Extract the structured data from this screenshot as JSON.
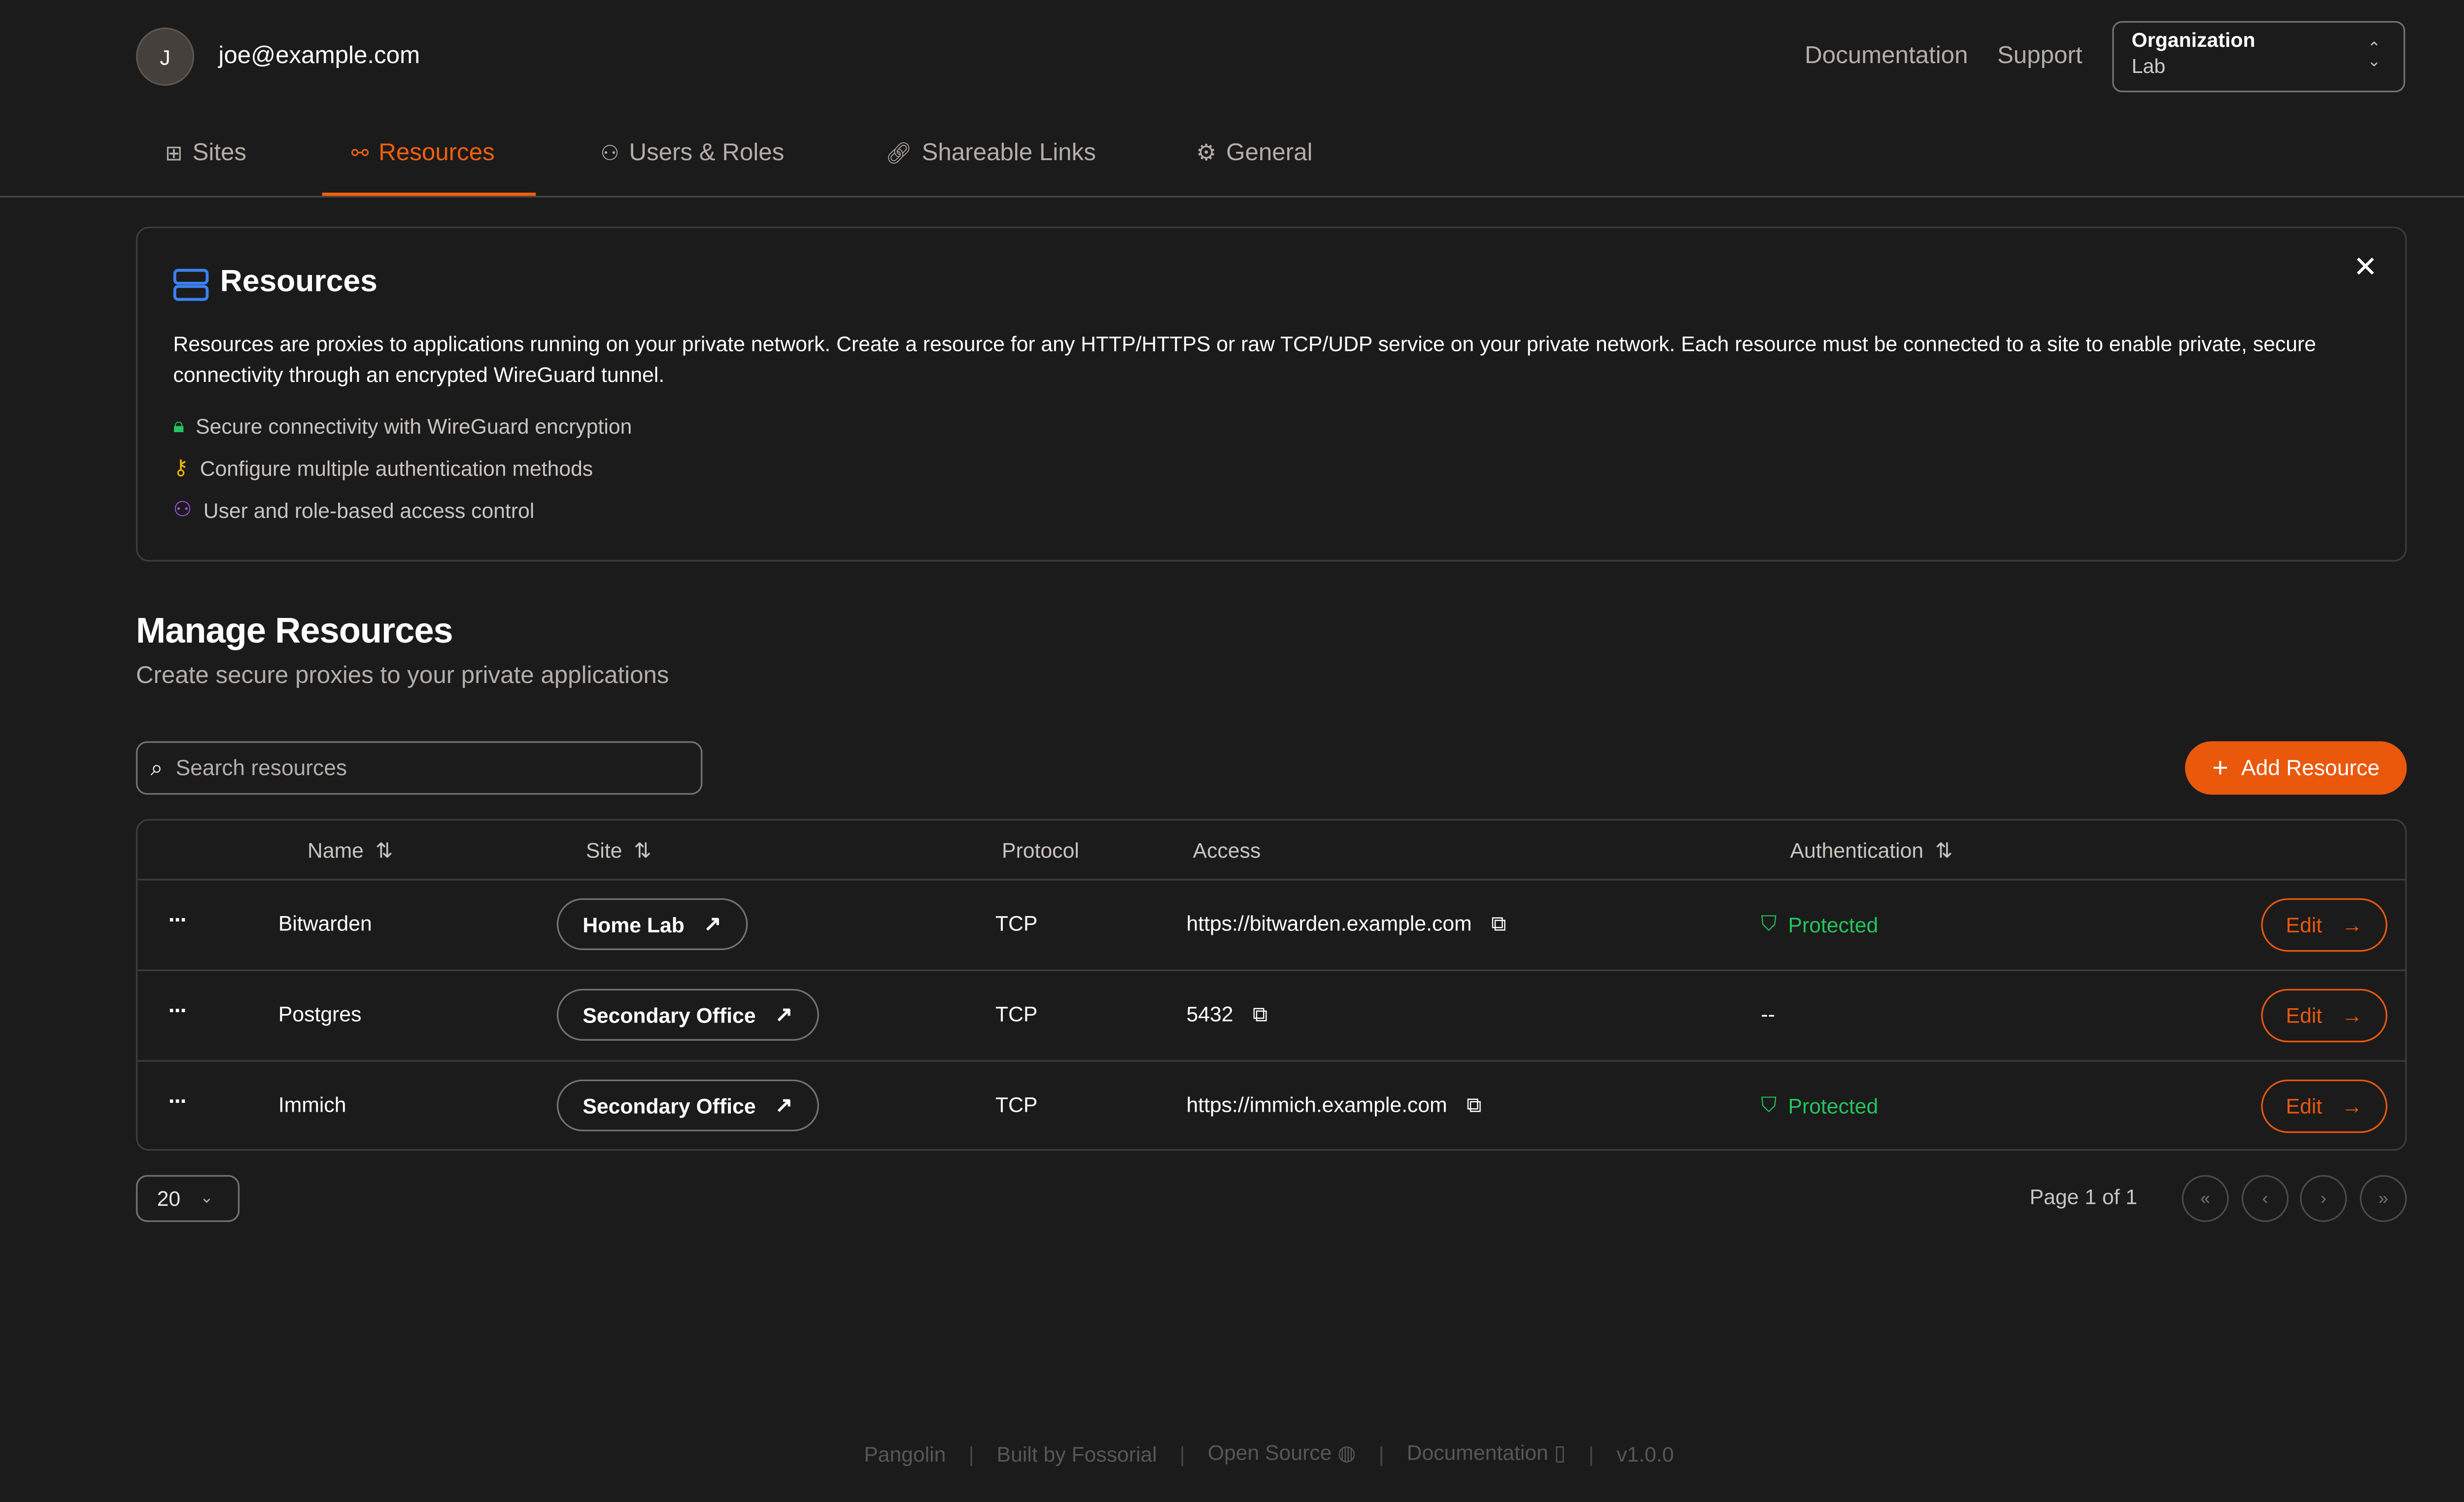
{
  "header": {
    "avatar_initial": "J",
    "email": "joe@example.com",
    "documentation": "Documentation",
    "support": "Support",
    "org_label": "Organization",
    "org_value": "Lab"
  },
  "tabs": [
    {
      "label": "Sites",
      "icon": "sites-icon"
    },
    {
      "label": "Resources",
      "icon": "resources-icon",
      "active": true
    },
    {
      "label": "Users & Roles",
      "icon": "users-icon"
    },
    {
      "label": "Shareable Links",
      "icon": "link-icon"
    },
    {
      "label": "General",
      "icon": "gear-icon"
    }
  ],
  "info": {
    "title": "Resources",
    "description": "Resources are proxies to applications running on your private network. Create a resource for any HTTP/HTTPS or raw TCP/UDP service on your private network. Each resource must be connected to a site to enable private, secure connectivity through an encrypted WireGuard tunnel.",
    "features": [
      "Secure connectivity with WireGuard encryption",
      "Configure multiple authentication methods",
      "User and role-based access control"
    ]
  },
  "main": {
    "title": "Manage Resources",
    "subtitle": "Create secure proxies to your private applications",
    "search_placeholder": "Search resources",
    "add_button": "Add Resource"
  },
  "table": {
    "columns": [
      "Name",
      "Site",
      "Protocol",
      "Access",
      "Authentication"
    ],
    "rows": [
      {
        "name": "Bitwarden",
        "site": "Home Lab",
        "protocol": "TCP",
        "access": "https://bitwarden.example.com",
        "auth": "Protected"
      },
      {
        "name": "Postgres",
        "site": "Secondary Office",
        "protocol": "TCP",
        "access": "5432",
        "auth": "--"
      },
      {
        "name": "Immich",
        "site": "Secondary Office",
        "protocol": "TCP",
        "access": "https://immich.example.com",
        "auth": "Protected"
      }
    ],
    "edit_label": "Edit"
  },
  "pagination": {
    "page_size": "20",
    "page_text": "Page 1 of 1"
  },
  "footer": {
    "items": [
      "Pangolin",
      "Built by Fossorial",
      "Open Source",
      "Documentation",
      "v1.0.0"
    ]
  },
  "colors": {
    "accent": "#ea580c",
    "background": "#1b1b1b",
    "success": "#22c55e"
  }
}
